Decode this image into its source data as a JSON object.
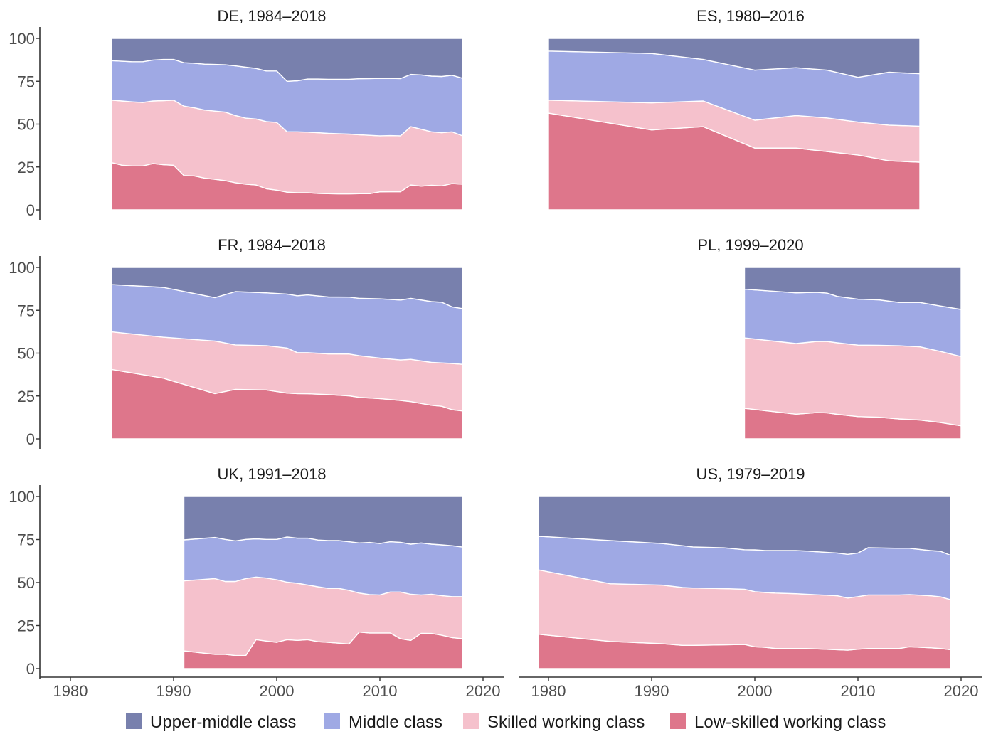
{
  "chart_data": {
    "type": "area",
    "stacked": true,
    "ylim": [
      0,
      100
    ],
    "xlim": [
      1977,
      2022
    ],
    "yticks": [
      0,
      25,
      50,
      75,
      100
    ],
    "xticks": [
      1980,
      1990,
      2000,
      2010,
      2020
    ],
    "grid": false,
    "legend_position": "bottom",
    "classes": [
      {
        "key": "low",
        "name": "Low-skilled working class",
        "color": "#de768b"
      },
      {
        "key": "skilled",
        "name": "Skilled working class",
        "color": "#f5c1cc"
      },
      {
        "key": "middle",
        "name": "Middle class",
        "color": "#9fa9e4"
      },
      {
        "key": "upper",
        "name": "Upper-middle class",
        "color": "#7880ad"
      }
    ],
    "legend_order": [
      "upper",
      "middle",
      "skilled",
      "low"
    ],
    "note": "cumulative tops: low, low+skilled, low+skilled+middle; upper fills to 100",
    "panels": [
      {
        "id": "DE",
        "title": "DE, 1984–2018",
        "years": [
          1984,
          1985,
          1986,
          1987,
          1988,
          1989,
          1990,
          1991,
          1992,
          1993,
          1994,
          1995,
          1996,
          1997,
          1998,
          1999,
          2000,
          2001,
          2002,
          2003,
          2004,
          2005,
          2006,
          2007,
          2008,
          2009,
          2010,
          2011,
          2012,
          2013,
          2014,
          2015,
          2016,
          2017,
          2018
        ],
        "low_top": [
          27.5,
          26,
          25.6,
          25.6,
          27,
          26.3,
          26,
          20,
          19.8,
          18.5,
          17.8,
          17,
          15.8,
          15,
          14.5,
          12.3,
          11.5,
          10.3,
          10,
          10,
          9.6,
          9.4,
          9.3,
          9.3,
          9.4,
          9.4,
          10.5,
          10.6,
          10.6,
          14.5,
          13.8,
          14.3,
          14,
          15.3,
          15
        ],
        "skilled_top": [
          64,
          63.5,
          63,
          62.6,
          63.5,
          63.7,
          64,
          60.5,
          59.5,
          58.2,
          57.6,
          57,
          55,
          53.5,
          53,
          51.5,
          51,
          45.5,
          45.5,
          45.3,
          45,
          44.6,
          44.4,
          44.2,
          43.8,
          43.5,
          43.2,
          43.3,
          43.2,
          48.5,
          47,
          45.5,
          45,
          45.5,
          43.2
        ],
        "middle_top": [
          87,
          86.7,
          86.4,
          86.4,
          87.4,
          87.7,
          87.7,
          85.8,
          85.5,
          85,
          84.8,
          84.6,
          84,
          83.2,
          82.5,
          81,
          81,
          75,
          75.3,
          76.3,
          76.3,
          76.2,
          76.2,
          76.2,
          76.5,
          76.6,
          76.7,
          76.7,
          76.6,
          79,
          78.7,
          78,
          77.8,
          78.5,
          76.8
        ]
      },
      {
        "id": "ES",
        "title": "ES, 1980–2016",
        "years": [
          1980,
          1990,
          1995,
          2000,
          2004,
          2007,
          2010,
          2013,
          2016
        ],
        "low_top": [
          56.4,
          46.6,
          48.5,
          36,
          36,
          34,
          32,
          28.6,
          27.8
        ],
        "skilled_top": [
          64,
          62.4,
          63.5,
          52.3,
          55,
          53.6,
          51.2,
          49.4,
          48.8
        ],
        "middle_top": [
          92.6,
          91.2,
          87.7,
          81.5,
          82.9,
          81.5,
          77.3,
          80.3,
          79.4
        ]
      },
      {
        "id": "FR",
        "title": "FR, 1984–2018",
        "years": [
          1984,
          1989,
          1994,
          1996,
          1999,
          2001,
          2002,
          2003,
          2005,
          2007,
          2008,
          2010,
          2012,
          2013,
          2015,
          2016,
          2017,
          2018
        ],
        "low_top": [
          40.5,
          35.4,
          26.4,
          28.9,
          28.5,
          26.7,
          26.4,
          26.3,
          25.8,
          25.1,
          24.2,
          23.5,
          22.4,
          21.7,
          19.6,
          19,
          17,
          16.3
        ],
        "skilled_top": [
          62.4,
          59.3,
          57.1,
          54.8,
          54.4,
          53,
          50.3,
          50.3,
          49.6,
          49.5,
          48.5,
          47.1,
          46,
          46.4,
          44.6,
          44.3,
          44,
          43.5
        ],
        "middle_top": [
          90,
          88.4,
          82.4,
          85.9,
          85.2,
          84.5,
          83.5,
          84,
          82.8,
          82.7,
          82,
          81.7,
          81,
          82,
          80.1,
          79.7,
          77,
          76
        ]
      },
      {
        "id": "PL",
        "title": "PL, 1999–2020",
        "years": [
          1999,
          2004,
          2006,
          2007,
          2008,
          2010,
          2012,
          2014,
          2016,
          2018,
          2020
        ],
        "low_top": [
          17.8,
          14.4,
          15.3,
          15.2,
          14.3,
          13,
          12.6,
          11.6,
          11,
          9.5,
          7.6
        ],
        "skilled_top": [
          58.9,
          55.6,
          56.8,
          56.8,
          56,
          54.7,
          54.6,
          54.3,
          53.7,
          51,
          48
        ],
        "middle_top": [
          87.3,
          85.2,
          85.5,
          85,
          83.1,
          81.5,
          81.1,
          79.6,
          79.6,
          77.5,
          75.5
        ]
      },
      {
        "id": "UK",
        "title": "UK, 1991–2018",
        "years": [
          1991,
          1994,
          1995,
          1996,
          1997,
          1998,
          1999,
          2000,
          2001,
          2002,
          2003,
          2004,
          2005,
          2006,
          2007,
          2008,
          2009,
          2010,
          2011,
          2012,
          2013,
          2014,
          2015,
          2016,
          2017,
          2018
        ],
        "low_top": [
          10.3,
          8.3,
          8.3,
          7.6,
          7.6,
          16.8,
          16,
          15.3,
          16.8,
          16.4,
          16.8,
          15.6,
          15.3,
          14.8,
          14.3,
          21.2,
          20.7,
          20.7,
          20.7,
          17.3,
          16.4,
          20.5,
          20.4,
          19.4,
          18,
          17.4
        ],
        "skilled_top": [
          51,
          52.3,
          50.6,
          50.6,
          52.3,
          53.2,
          52.6,
          51.6,
          50.2,
          49.6,
          48.6,
          47.5,
          46.6,
          46.6,
          45.5,
          43.9,
          43,
          42.8,
          44.5,
          44.5,
          43.2,
          42.8,
          43.2,
          42.4,
          41.8,
          41.8
        ],
        "middle_top": [
          74.8,
          76.2,
          75.1,
          74.2,
          75.1,
          75.4,
          75.1,
          75.1,
          76.5,
          75.8,
          75.8,
          74.7,
          74.4,
          74.4,
          73.7,
          73,
          73.3,
          72.7,
          73.7,
          73.4,
          72.3,
          73,
          72.3,
          71.9,
          71.4,
          70.6
        ]
      },
      {
        "id": "US",
        "title": "US, 1979–2019",
        "years": [
          1979,
          1986,
          1991,
          1993,
          1994,
          1997,
          1999,
          2000,
          2001,
          2002,
          2004,
          2005,
          2008,
          2009,
          2010,
          2011,
          2014,
          2015,
          2017,
          2018,
          2019
        ],
        "low_top": [
          20,
          15.8,
          14.5,
          13.5,
          13.5,
          13.8,
          14,
          12.7,
          12.4,
          11.7,
          11.7,
          11.7,
          11,
          10.7,
          11.3,
          11.7,
          11.7,
          12.7,
          12.1,
          11.7,
          11
        ],
        "skilled_top": [
          57.4,
          49.3,
          48.5,
          47.1,
          46.8,
          46.5,
          46.1,
          44.7,
          44.2,
          43.9,
          43.5,
          43.2,
          42.3,
          41,
          41.8,
          42.8,
          42.8,
          43,
          42.3,
          41.7,
          40
        ],
        "middle_top": [
          76.9,
          74.4,
          72.7,
          71.4,
          70.7,
          70.2,
          69.1,
          69,
          68.6,
          68.6,
          68.6,
          68.3,
          67.2,
          66.4,
          67.2,
          70.3,
          69.9,
          69.9,
          68.6,
          68.2,
          65.8
        ]
      }
    ]
  }
}
